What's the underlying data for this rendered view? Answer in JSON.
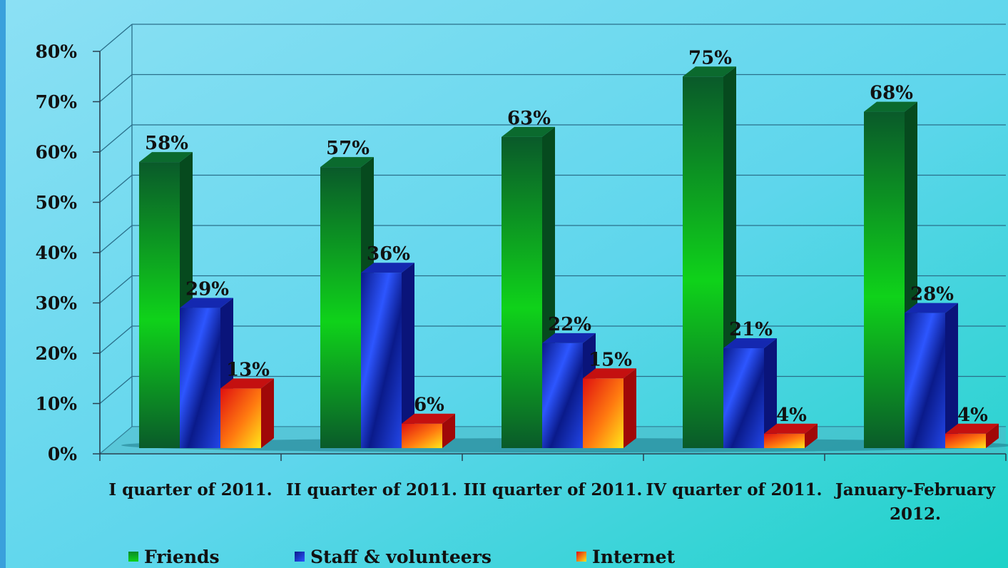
{
  "chart_data": {
    "type": "bar",
    "categories": [
      "I quarter of 2011.",
      "II quarter of 2011.",
      "III quarter of 2011.",
      "IV quarter of 2011.",
      "January-February 2012."
    ],
    "series": [
      {
        "name": "Friends",
        "values": [
          58,
          57,
          63,
          75,
          68
        ],
        "labels": [
          "58%",
          "57%",
          "63%",
          "75%",
          "68%"
        ],
        "color": "#0fbf2a"
      },
      {
        "name": "Staff & volunteers",
        "values": [
          29,
          36,
          22,
          21,
          28
        ],
        "labels": [
          "29%",
          "36%",
          "22%",
          "21%",
          "28%"
        ],
        "color": "#1a3ad8"
      },
      {
        "name": "Internet",
        "values": [
          13,
          6,
          15,
          4,
          4
        ],
        "labels": [
          "13%",
          "6%",
          "15%",
          "4%",
          "4%"
        ],
        "color": "#ff5a0a"
      }
    ],
    "yticks": [
      "0%",
      "10%",
      "20%",
      "30%",
      "40%",
      "50%",
      "60%",
      "70%",
      "80%"
    ],
    "ylim": [
      0,
      80
    ],
    "grid": true,
    "legend_position": "bottom-left",
    "style": "3d"
  }
}
